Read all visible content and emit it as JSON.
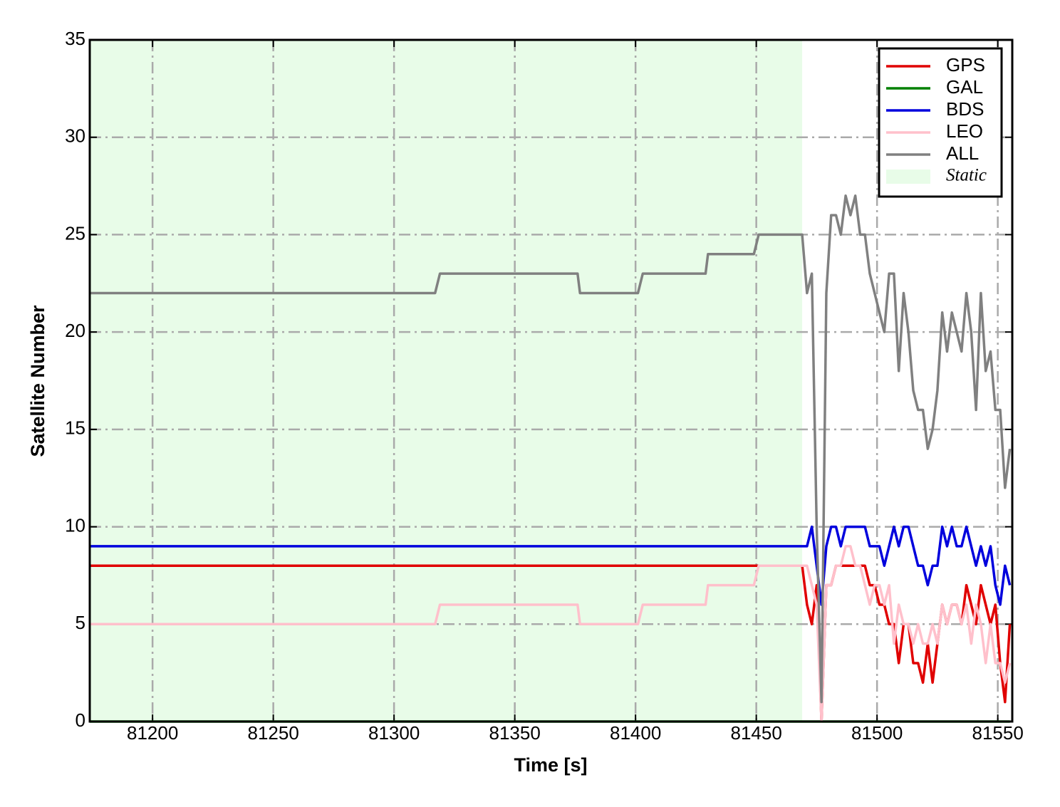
{
  "chart_data": {
    "type": "line",
    "xlabel": "Time [s]",
    "ylabel": "Satellite Number",
    "xlim": [
      81174,
      81556
    ],
    "ylim": [
      0,
      35
    ],
    "xticks": [
      81200,
      81250,
      81300,
      81350,
      81400,
      81450,
      81500,
      81550
    ],
    "yticks": [
      0,
      5,
      10,
      15,
      20,
      25,
      30,
      35
    ],
    "grid": true,
    "legend": "upper right",
    "shaded_region": {
      "label": "Static",
      "xrange": [
        81174,
        81469
      ],
      "color": "#e8fce8"
    },
    "x": [
      81174,
      81317,
      81319,
      81376,
      81377,
      81401,
      81403,
      81429,
      81430,
      81449,
      81451,
      81469,
      81471,
      81473,
      81475,
      81477,
      81479,
      81481,
      81483,
      81485,
      81487,
      81489,
      81491,
      81493,
      81495,
      81497,
      81499,
      81501,
      81503,
      81505,
      81507,
      81509,
      81511,
      81513,
      81515,
      81517,
      81519,
      81521,
      81523,
      81525,
      81527,
      81529,
      81531,
      81533,
      81535,
      81537,
      81539,
      81541,
      81543,
      81545,
      81547,
      81549,
      81551,
      81553,
      81555
    ],
    "series": [
      {
        "name": "GPS",
        "color": "#e00000",
        "values": [
          8,
          8,
          8,
          8,
          8,
          8,
          8,
          8,
          8,
          8,
          8,
          8,
          6,
          5,
          7,
          0,
          7,
          7,
          8,
          8,
          8,
          8,
          8,
          8,
          8,
          7,
          7,
          6,
          6,
          5,
          5,
          3,
          5,
          5,
          3,
          3,
          2,
          4,
          2,
          4,
          6,
          5,
          6,
          6,
          5,
          7,
          6,
          5,
          7,
          6,
          5,
          6,
          3,
          1,
          5
        ]
      },
      {
        "name": "GAL",
        "color": "#008000",
        "values": [
          0,
          0,
          0,
          0,
          0,
          0,
          0,
          0,
          0,
          0,
          0,
          0,
          0,
          0,
          0,
          0,
          0,
          0,
          0,
          0,
          0,
          0,
          0,
          0,
          0,
          0,
          0,
          0,
          0,
          0,
          0,
          0,
          0,
          0,
          0,
          0,
          0,
          0,
          0,
          0,
          0,
          0,
          0,
          0,
          0,
          0,
          0,
          0,
          0,
          0,
          0,
          0,
          0,
          0,
          0
        ]
      },
      {
        "name": "BDS",
        "color": "#0000dd",
        "values": [
          9,
          9,
          9,
          9,
          9,
          9,
          9,
          9,
          9,
          9,
          9,
          9,
          9,
          10,
          8,
          6,
          9,
          10,
          10,
          9,
          10,
          10,
          10,
          10,
          10,
          9,
          9,
          9,
          8,
          9,
          10,
          9,
          10,
          10,
          9,
          8,
          8,
          7,
          8,
          8,
          10,
          9,
          10,
          9,
          9,
          10,
          9,
          8,
          9,
          8,
          9,
          7,
          6,
          8,
          7
        ]
      },
      {
        "name": "LEO",
        "color": "#ffc0cb",
        "values": [
          5,
          5,
          6,
          6,
          5,
          5,
          6,
          6,
          7,
          7,
          8,
          8,
          8,
          7,
          6,
          0,
          7,
          7,
          8,
          8,
          9,
          9,
          8,
          8,
          7,
          6,
          7,
          7,
          6,
          7,
          4,
          6,
          5,
          5,
          4,
          5,
          4,
          4,
          5,
          4,
          6,
          5,
          6,
          6,
          5,
          6,
          4,
          6,
          5,
          3,
          5,
          3,
          3,
          2,
          3
        ]
      },
      {
        "name": "ALL",
        "color": "#808080",
        "values": [
          22,
          22,
          23,
          23,
          22,
          22,
          23,
          23,
          24,
          24,
          25,
          25,
          22,
          23,
          10,
          1,
          22,
          26,
          26,
          25,
          27,
          26,
          27,
          25,
          25,
          23,
          22,
          21,
          20,
          23,
          23,
          18,
          22,
          20,
          17,
          16,
          16,
          14,
          15,
          17,
          21,
          19,
          21,
          20,
          19,
          22,
          20,
          16,
          22,
          18,
          19,
          16,
          16,
          12,
          14
        ]
      }
    ]
  }
}
